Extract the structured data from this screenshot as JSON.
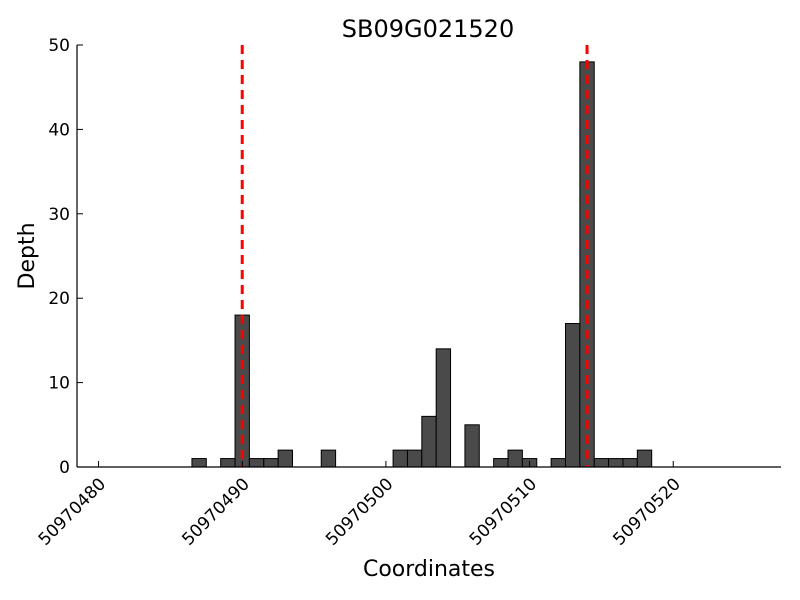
{
  "chart_data": {
    "type": "bar",
    "title": "SB09G021520",
    "xlabel": "Coordinates",
    "ylabel": "Depth",
    "xlim": [
      50970479,
      50970528
    ],
    "ylim": [
      0,
      50
    ],
    "xticks": [
      50970480,
      50970490,
      50970500,
      50970510,
      50970520
    ],
    "yticks": [
      0,
      10,
      20,
      30,
      40,
      50
    ],
    "bar_color": "#4a4a4a",
    "marker_color": "#ff0000",
    "markers": [
      50970490,
      50970514
    ],
    "x": [
      50970487,
      50970489,
      50970490,
      50970491,
      50970492,
      50970493,
      50970496,
      50970501,
      50970502,
      50970503,
      50970504,
      50970506,
      50970508,
      50970509,
      50970510,
      50970512,
      50970513,
      50970514,
      50970515,
      50970516,
      50970517,
      50970518
    ],
    "values": [
      1,
      1,
      18,
      1,
      1,
      2,
      2,
      2,
      2,
      6,
      14,
      5,
      1,
      2,
      1,
      1,
      17,
      48,
      1,
      1,
      1,
      2
    ]
  }
}
